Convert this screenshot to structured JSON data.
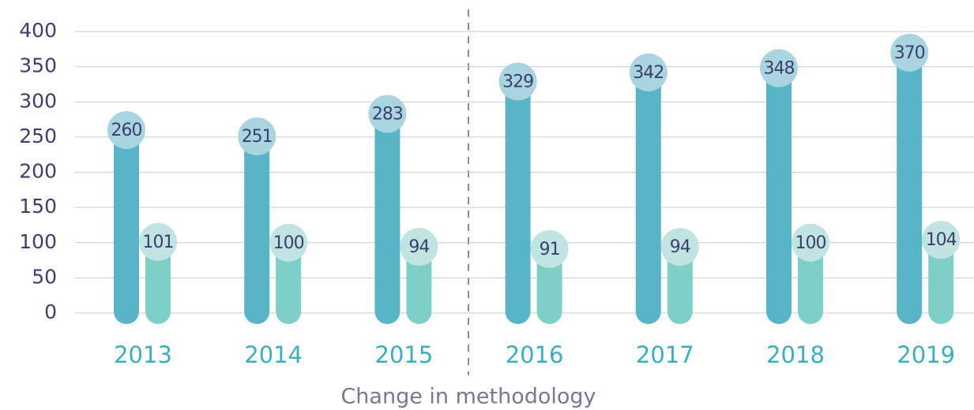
{
  "chart_data": {
    "type": "bar",
    "categories": [
      "2013",
      "2014",
      "2015",
      "2016",
      "2017",
      "2018",
      "2019"
    ],
    "series": [
      {
        "color": "#58b5c8",
        "label_color": "#a9d5e1",
        "values": [
          260,
          251,
          283,
          329,
          342,
          348,
          370
        ]
      },
      {
        "color": "#7fcfc9",
        "label_color": "#bfe4e2",
        "values": [
          101,
          100,
          94,
          91,
          94,
          100,
          104
        ]
      }
    ],
    "ylim": [
      0,
      400
    ],
    "yticks": [
      0,
      50,
      100,
      150,
      200,
      250,
      300,
      350,
      400
    ],
    "grid": true,
    "annotation": "Change in methodology"
  }
}
